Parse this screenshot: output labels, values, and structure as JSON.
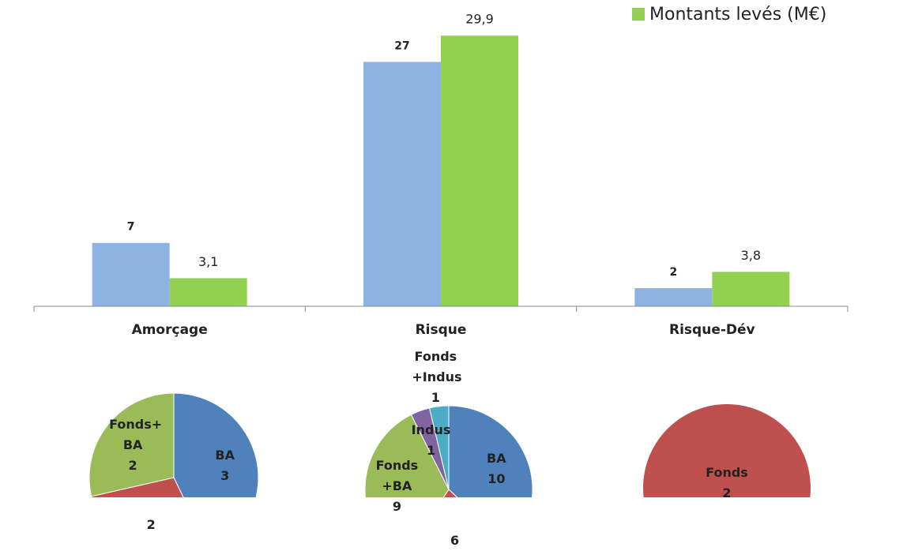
{
  "chart_data": [
    {
      "type": "bar",
      "categories": [
        "Amorçage",
        "Risque",
        "Risque-Dév"
      ],
      "series": [
        {
          "color": "#8db3e2",
          "values": [
            7,
            27,
            2
          ]
        },
        {
          "name": "Montants levés (M€)",
          "color": "#92d050",
          "values": [
            3.1,
            29.9,
            3.8
          ],
          "value_labels": [
            "3,1",
            "29,9",
            "3,8"
          ]
        }
      ],
      "ylim": [
        0,
        30
      ]
    },
    {
      "type": "pie",
      "categories": [
        "BA",
        null,
        "Fonds+ BA"
      ],
      "values": [
        3,
        2,
        2
      ],
      "colors": [
        "#4f81bd",
        "#c0504d",
        "#9bbb59"
      ]
    },
    {
      "type": "pie",
      "categories": [
        "BA",
        null,
        "Fonds +BA",
        "Indus",
        "Fonds +Indus"
      ],
      "values": [
        10,
        6,
        9,
        1,
        1
      ],
      "colors": [
        "#4f81bd",
        "#c0504d",
        "#9bbb59",
        "#8064a2",
        "#4bacc6"
      ]
    },
    {
      "type": "pie",
      "categories": [
        "Fonds"
      ],
      "values": [
        2
      ],
      "colors": [
        "#c0504d"
      ]
    }
  ]
}
